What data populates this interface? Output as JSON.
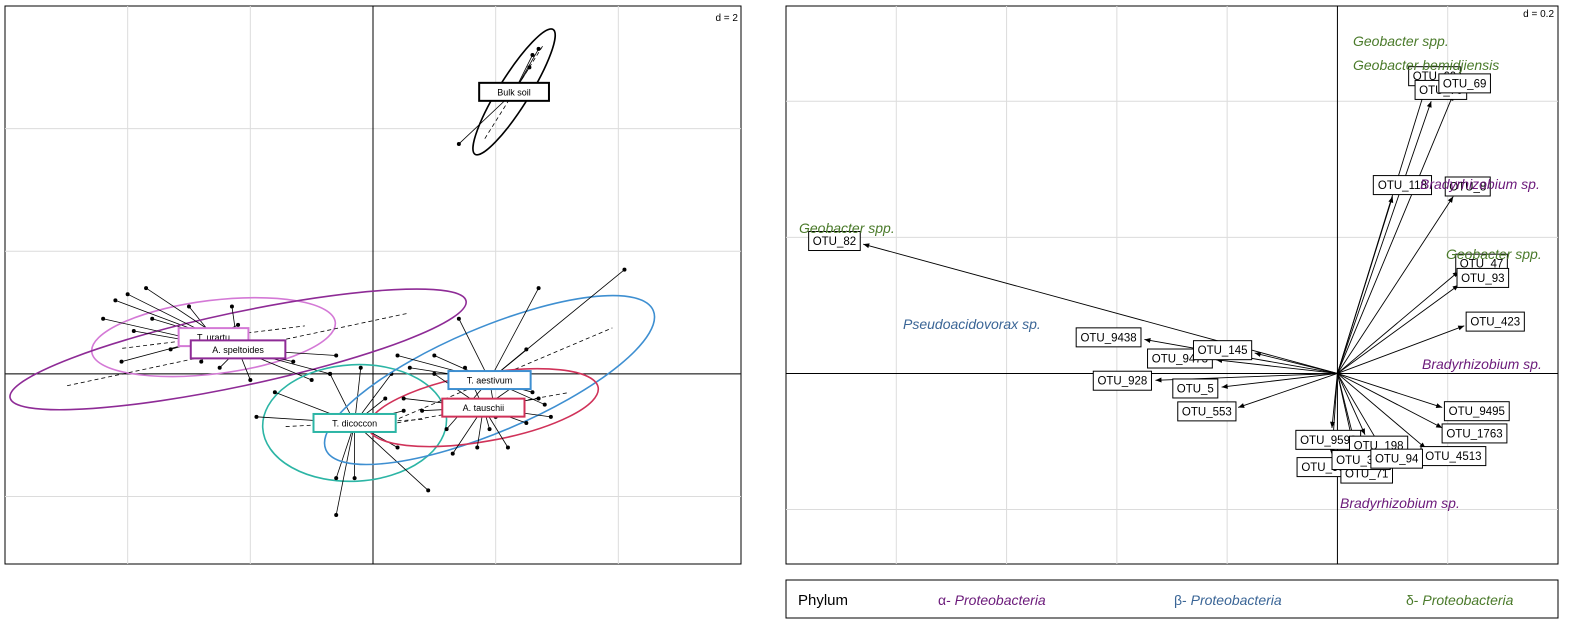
{
  "colors": {
    "alpha": "#6b1a7a",
    "beta": "#3a6596",
    "delta": "#4a7a2a",
    "purple_group": "#8e2b96",
    "pink_group": "#d479d6",
    "teal_group": "#2cb5a5",
    "blue_group": "#3e8fd1",
    "red_group": "#d03259",
    "black": "#000000"
  },
  "chart_data": [
    {
      "type": "scatter",
      "title": "",
      "scale_label": "d = 2",
      "xlim": [
        -6,
        6
      ],
      "ylim": [
        -3.1,
        6
      ],
      "grid": true,
      "x_ticks": [
        -4,
        -2,
        0,
        2,
        4
      ],
      "y_ticks": [
        -2,
        0,
        2,
        4
      ],
      "groups": [
        {
          "name": "Bulk soil",
          "color": "#000000",
          "center": [
            2.3,
            4.6
          ],
          "ellipse": {
            "rx": 1.2,
            "ry": 0.25,
            "angle_deg": -58
          },
          "points": [
            [
              2.7,
              5.3
            ],
            [
              1.4,
              3.75
            ],
            [
              2.6,
              5.2
            ],
            [
              2.55,
              5.0
            ]
          ]
        },
        {
          "name": "T. urartu",
          "color": "#d479d6",
          "center": [
            -2.6,
            0.6
          ],
          "ellipse": {
            "rx": 2.0,
            "ry": 0.6,
            "angle_deg": -7
          },
          "points": [
            [
              -4.2,
              1.2
            ],
            [
              -3.6,
              0.9
            ],
            [
              -4.1,
              0.2
            ],
            [
              -3.0,
              1.1
            ],
            [
              -2.2,
              0.8
            ],
            [
              -2.8,
              0.2
            ],
            [
              -3.3,
              0.4
            ],
            [
              -1.9,
              0.3
            ]
          ]
        },
        {
          "name": "A. speltoides",
          "color": "#8e2b96",
          "center": [
            -2.2,
            0.4
          ],
          "ellipse": {
            "rx": 3.8,
            "ry": 0.6,
            "angle_deg": -12
          },
          "points": [
            [
              -4.0,
              1.3
            ],
            [
              -3.7,
              1.4
            ],
            [
              -4.4,
              0.9
            ],
            [
              -3.9,
              0.7
            ],
            [
              -2.3,
              1.1
            ],
            [
              -1.8,
              0.5
            ],
            [
              -2.0,
              -0.1
            ],
            [
              -2.5,
              0.1
            ],
            [
              -1.3,
              0.2
            ],
            [
              -1.0,
              -0.1
            ],
            [
              -0.7,
              0.0
            ],
            [
              -0.6,
              0.3
            ]
          ]
        },
        {
          "name": "T. dicoccon",
          "color": "#2cb5a5",
          "center": [
            -0.3,
            -0.8
          ],
          "ellipse": {
            "rx": 1.5,
            "ry": 0.95,
            "angle_deg": -3
          },
          "points": [
            [
              -0.6,
              -2.3
            ],
            [
              -0.3,
              -1.7
            ],
            [
              -0.6,
              -1.7
            ],
            [
              0.4,
              -1.2
            ],
            [
              0.9,
              -1.9
            ],
            [
              -1.9,
              -0.7
            ],
            [
              -1.6,
              -0.3
            ],
            [
              0.3,
              0.0
            ],
            [
              -0.2,
              0.1
            ],
            [
              -0.7,
              0.0
            ],
            [
              0.5,
              -0.6
            ],
            [
              0.2,
              -0.4
            ]
          ]
        },
        {
          "name": "T. aestivum",
          "color": "#3e8fd1",
          "center": [
            1.9,
            -0.1
          ],
          "ellipse": {
            "rx": 2.9,
            "ry": 0.85,
            "angle_deg": -23
          },
          "points": [
            [
              4.1,
              1.7
            ],
            [
              2.7,
              1.4
            ],
            [
              1.4,
              0.9
            ],
            [
              1.0,
              0.3
            ],
            [
              2.5,
              0.4
            ],
            [
              2.8,
              -0.5
            ],
            [
              2.0,
              -0.7
            ],
            [
              0.4,
              0.3
            ],
            [
              1.2,
              -0.9
            ],
            [
              2.6,
              -0.3
            ],
            [
              0.6,
              0.1
            ],
            [
              1.7,
              0.0
            ]
          ]
        },
        {
          "name": "A. tauschii",
          "color": "#d03259",
          "center": [
            1.8,
            -0.55
          ],
          "ellipse": {
            "rx": 1.9,
            "ry": 0.55,
            "angle_deg": -10
          },
          "points": [
            [
              1.3,
              -1.3
            ],
            [
              1.7,
              -1.2
            ],
            [
              2.5,
              -0.8
            ],
            [
              0.8,
              -0.6
            ],
            [
              2.7,
              -0.4
            ],
            [
              2.9,
              -0.7
            ],
            [
              1.0,
              0.0
            ],
            [
              1.5,
              0.1
            ],
            [
              2.2,
              -1.2
            ],
            [
              0.5,
              -0.4
            ],
            [
              1.9,
              -0.9
            ],
            [
              2.3,
              -0.2
            ]
          ]
        }
      ]
    },
    {
      "type": "biplot",
      "title": "",
      "scale_label": "d = 0.2",
      "xlim": [
        -1.0,
        0.4
      ],
      "ylim": [
        -0.28,
        0.54
      ],
      "grid": true,
      "x_ticks": [
        -0.8,
        -0.6,
        -0.4,
        -0.2,
        0.2
      ],
      "y_ticks": [
        -0.2,
        0.2,
        0.4
      ],
      "arrows": [
        {
          "label": "OTU_82",
          "x": -0.86,
          "y": 0.19,
          "phylum": "delta"
        },
        {
          "label": "OTU_9438",
          "x": -0.35,
          "y": 0.05,
          "phylum": "beta"
        },
        {
          "label": "OTU_9473",
          "x": -0.22,
          "y": 0.02,
          "phylum": "beta"
        },
        {
          "label": "OTU_5",
          "x": -0.21,
          "y": -0.02,
          "phylum": "beta"
        },
        {
          "label": "OTU_553",
          "x": -0.18,
          "y": -0.05,
          "phylum": "beta"
        },
        {
          "label": "OTU_928",
          "x": -0.33,
          "y": -0.01,
          "phylum": "beta"
        },
        {
          "label": "OTU_145",
          "x": -0.15,
          "y": 0.03,
          "phylum": "beta"
        },
        {
          "label": "OTU_60",
          "x": 0.16,
          "y": 0.42,
          "phylum": "delta"
        },
        {
          "label": "OTU_70",
          "x": 0.17,
          "y": 0.4,
          "phylum": "delta"
        },
        {
          "label": "OTU_69",
          "x": 0.21,
          "y": 0.41,
          "phylum": "delta"
        },
        {
          "label": "OTU_118",
          "x": 0.1,
          "y": 0.26,
          "phylum": "alpha"
        },
        {
          "label": "OTU_8",
          "x": 0.21,
          "y": 0.26,
          "phylum": "alpha"
        },
        {
          "label": "OTU_47",
          "x": 0.22,
          "y": 0.15,
          "phylum": "delta"
        },
        {
          "label": "OTU_93",
          "x": 0.22,
          "y": 0.13,
          "phylum": "delta"
        },
        {
          "label": "OTU_423",
          "x": 0.23,
          "y": 0.07,
          "phylum": "alpha"
        },
        {
          "label": "OTU_9495",
          "x": 0.19,
          "y": -0.05,
          "phylum": "alpha"
        },
        {
          "label": "OTU_1763",
          "x": 0.19,
          "y": -0.08,
          "phylum": "alpha"
        },
        {
          "label": "OTU_4513",
          "x": 0.16,
          "y": -0.11,
          "phylum": "alpha"
        },
        {
          "label": "OTU_9598",
          "x": -0.01,
          "y": -0.08,
          "phylum": "alpha"
        },
        {
          "label": "OTU_9878",
          "x": -0.01,
          "y": -0.12,
          "phylum": "alpha"
        },
        {
          "label": "OTU_198",
          "x": 0.05,
          "y": -0.09,
          "phylum": "alpha"
        },
        {
          "label": "OTU_71",
          "x": 0.04,
          "y": -0.13,
          "phylum": "alpha"
        },
        {
          "label": "OTU_361",
          "x": 0.03,
          "y": -0.11,
          "phylum": "alpha"
        },
        {
          "label": "OTU_94",
          "x": 0.08,
          "y": -0.11,
          "phylum": "alpha"
        }
      ],
      "annotations": [
        {
          "text": "Geobacter spp.",
          "phylum": "delta"
        },
        {
          "text": "Geobacter bemidjiensis",
          "phylum": "delta"
        },
        {
          "text": "Bradyrhizobium sp.",
          "phylum": "alpha"
        },
        {
          "text": "Geobacter spp.",
          "phylum": "delta"
        },
        {
          "text": "Geobacter spp.",
          "phylum": "delta"
        },
        {
          "text": "Pseudoacidovorax sp.",
          "phylum": "beta"
        },
        {
          "text": "Bradyrhizobium sp.",
          "phylum": "alpha"
        },
        {
          "text": "Bradyrhizobium sp.",
          "phylum": "alpha"
        }
      ]
    }
  ],
  "legend": {
    "title": "Phylum",
    "entries": [
      {
        "prefix": "α- ",
        "name": "Proteobacteria",
        "phylum": "alpha"
      },
      {
        "prefix": "β- ",
        "name": "Proteobacteria",
        "phylum": "beta"
      },
      {
        "prefix": "δ- ",
        "name": "Proteobacteria",
        "phylum": "delta"
      }
    ]
  }
}
